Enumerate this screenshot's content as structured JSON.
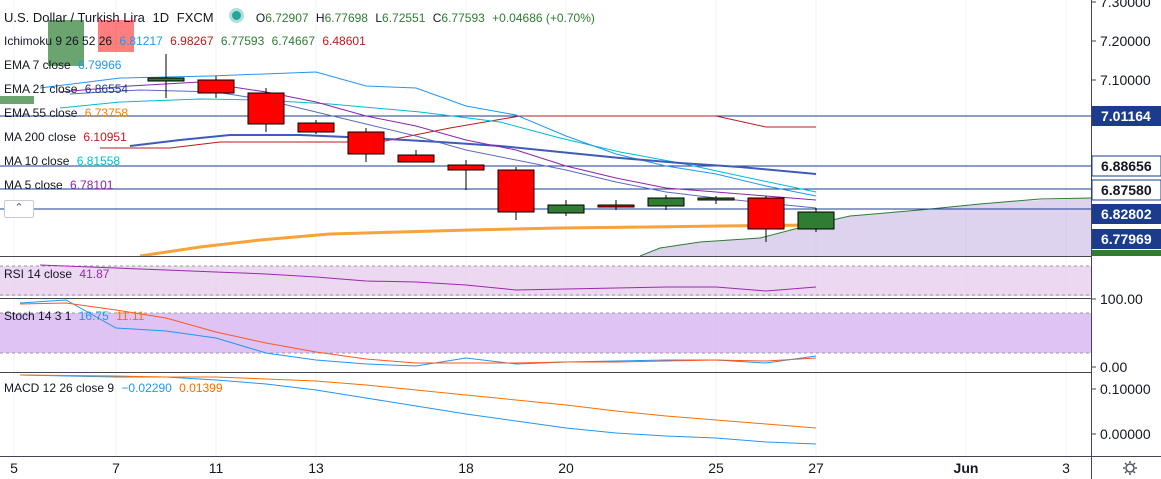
{
  "header": {
    "symbol": "U.S. Dollar / Turkish Lira",
    "interval": "1D",
    "exchange": "FXCM",
    "open_label": "O",
    "open": "6.72907",
    "high_label": "H",
    "high": "6.77698",
    "low_label": "L",
    "low": "6.72551",
    "close_label": "C",
    "close": "6.77593",
    "change": "+0.04686 (+0.70%)"
  },
  "indicators": {
    "ichimoku": {
      "name": "Ichimoku 9 26 52 26",
      "v1": "6.81217",
      "v2": "6.98267",
      "v3": "6.77593",
      "v4": "6.74667",
      "v5": "6.48601"
    },
    "ema7": {
      "name": "EMA 7 close",
      "value": "6.79966"
    },
    "ema21": {
      "name": "EMA 21 close",
      "value": "6.86554"
    },
    "ema55": {
      "name": "EMA 55 close",
      "value": "6.73758"
    },
    "ma200": {
      "name": "MA 200 close",
      "value": "6.10951"
    },
    "ma10": {
      "name": "MA 10 close",
      "value": "6.81558"
    },
    "ma5": {
      "name": "MA 5 close",
      "value": "6.78101"
    }
  },
  "price_axis": {
    "ticks": [
      "7.30000",
      "7.20000",
      "7.10000"
    ],
    "tags": [
      {
        "value": "7.01164",
        "style": "filled",
        "color": "#1b3c8c"
      },
      {
        "value": "6.88656",
        "style": "outline",
        "color": "#1b3c8c"
      },
      {
        "value": "6.87580",
        "style": "outline",
        "color": "#1b3c8c"
      },
      {
        "value": "6.82802",
        "style": "filled",
        "color": "#1b3c8c"
      },
      {
        "value": "6.77969",
        "style": "filled",
        "color": "#2e7d32"
      }
    ]
  },
  "rsi": {
    "name": "RSI 14 close",
    "value": "41.87",
    "axis_label": "100.00"
  },
  "stoch": {
    "name": "Stoch 14 3 1",
    "k": "16.75",
    "d": "11.11",
    "axis_label": "0.00"
  },
  "macd": {
    "name": "MACD 12 26 close 9",
    "macd": "−0.02290",
    "signal": "0.01399",
    "axis_ticks": [
      "0.10000",
      "0.00000"
    ]
  },
  "time_axis": [
    "5",
    "7",
    "11",
    "13",
    "18",
    "20",
    "25",
    "27",
    "Jun",
    "3"
  ],
  "colors": {
    "bull": "#2e7d32",
    "bear": "#ff0000",
    "ema7": "#2196f3",
    "ema21": "#1b5eb4",
    "ema55": "#00bcd4",
    "ma200": "#f57c00",
    "ma10": "#8e24aa",
    "ma5": "#b71c1c",
    "rsi": "#9c27b0",
    "stoch_k": "#2196f3",
    "stoch_d": "#ff5722",
    "macd": "#2196f3",
    "signal": "#ff6d00"
  },
  "icons": {
    "collapse": "chevron-up-icon",
    "settings": "gear-icon",
    "status": "dot-icon"
  }
}
